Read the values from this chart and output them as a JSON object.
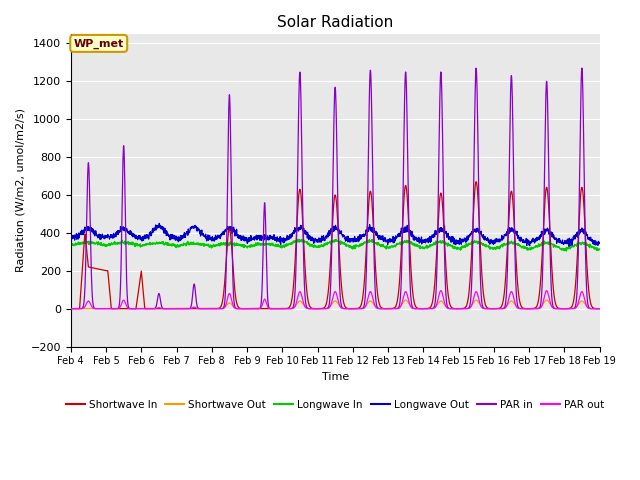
{
  "title": "Solar Radiation",
  "ylabel": "Radiation (W/m2, umol/m2/s)",
  "xlabel": "Time",
  "xlim_days": [
    4,
    19
  ],
  "ylim": [
    -200,
    1450
  ],
  "yticks": [
    -200,
    0,
    200,
    400,
    600,
    800,
    1000,
    1200,
    1400
  ],
  "bg_color": "#e8e8e8",
  "fig_color": "#ffffff",
  "annotation_text": "WP_met",
  "annotation_bg": "#ffffcc",
  "annotation_border": "#cc9900",
  "annotation_text_color": "#660000",
  "series_colors": {
    "shortwave_in": "#cc0000",
    "shortwave_out": "#ff9900",
    "longwave_in": "#00cc00",
    "longwave_out": "#0000cc",
    "par_in": "#8800cc",
    "par_out": "#ff00ff"
  },
  "legend_labels": [
    "Shortwave In",
    "Shortwave Out",
    "Longwave In",
    "Longwave Out",
    "PAR in",
    "PAR out"
  ]
}
